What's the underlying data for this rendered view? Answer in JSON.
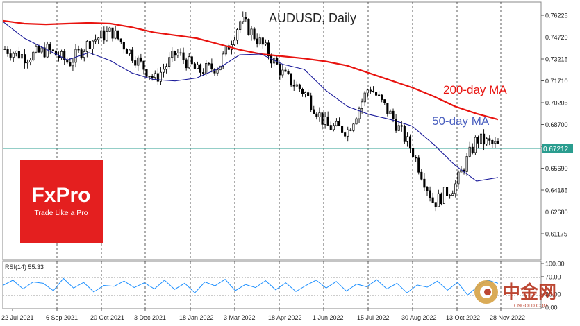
{
  "chart_data": [
    {
      "type": "candlestick",
      "title": "AUDUSD, Daily",
      "y_axis_side": "right",
      "ylim": [
        0.6045,
        0.631
      ],
      "y_ticks": [
        "0.76225",
        "0.74720",
        "0.73215",
        "0.71710",
        "0.70205",
        "0.68700",
        "0.67195",
        "0.65690",
        "0.64185",
        "0.62680",
        "0.61175"
      ],
      "y_tick_values": [
        0.76225,
        0.7472,
        0.73215,
        0.7171,
        0.70205,
        0.687,
        0.67195,
        0.6569,
        0.64185,
        0.6268,
        0.61175
      ],
      "x_ticks": [
        "22 Jul 2021",
        "6 Sep 2021",
        "20 Oct 2021",
        "3 Dec 2021",
        "18 Jan 2022",
        "3 Mar 2022",
        "18 Apr 2022",
        "1 Jun 2022",
        "15 Jul 2022",
        "30 Aug 2022",
        "13 Oct 2022",
        "28 Nov 2022"
      ],
      "current_price": "0.67212",
      "grid": "vertical dashed",
      "series": [
        {
          "name": "200-day MA",
          "color": "#e8130f",
          "values": [
            0.7585,
            0.7565,
            0.756,
            0.7565,
            0.757,
            0.7565,
            0.754,
            0.7505,
            0.7485,
            0.7465,
            0.7425,
            0.7385,
            0.7355,
            0.734,
            0.7325,
            0.7305,
            0.7275,
            0.7225,
            0.7175,
            0.7125,
            0.7065,
            0.6995,
            0.6945,
            0.6905
          ]
        },
        {
          "name": "50-day MA",
          "color": "#1a1a9a",
          "values": [
            0.758,
            0.7465,
            0.739,
            0.7315,
            0.7365,
            0.731,
            0.7225,
            0.718,
            0.717,
            0.719,
            0.7255,
            0.735,
            0.7355,
            0.7285,
            0.725,
            0.7105,
            0.6995,
            0.694,
            0.6905,
            0.686,
            0.6735,
            0.659,
            0.648,
            0.6505
          ]
        },
        {
          "name": "AUDUSD",
          "color": "#000000",
          "values": [
            0.739,
            0.7335,
            0.7385,
            0.7295,
            0.7445,
            0.751,
            0.734,
            0.718,
            0.7365,
            0.7235,
            0.7275,
            0.759,
            0.742,
            0.721,
            0.7085,
            0.686,
            0.683,
            0.7135,
            0.6935,
            0.669,
            0.633,
            0.645,
            0.677,
            0.6721
          ]
        }
      ],
      "annotations": [
        "200-day MA",
        "50-day MA"
      ]
    },
    {
      "type": "line",
      "title": "RSI(14) 55.33",
      "ylim": [
        0,
        100
      ],
      "y_ticks": [
        "100.00",
        "70.00",
        "30.00",
        "0.00"
      ],
      "reference_lines": [
        70,
        30
      ],
      "series": [
        {
          "name": "RSI(14)",
          "color": "#1e90ff",
          "values": [
            50,
            62,
            42,
            58,
            55,
            38,
            66,
            44,
            57,
            35,
            50,
            48,
            60,
            45,
            56,
            42,
            62,
            41,
            55,
            33,
            58,
            49,
            64,
            38,
            52,
            45,
            61,
            40,
            56,
            36,
            50,
            62,
            44,
            59,
            37,
            53,
            47,
            63,
            42,
            55,
            33,
            51,
            46,
            60,
            39,
            57,
            28,
            48,
            62,
            55
          ]
        }
      ]
    }
  ],
  "watermark": {
    "brand": "FxPro",
    "tagline": "Trade Like a Pro",
    "brand_color": "#e41f1f"
  },
  "source_logo": {
    "text": "中金网",
    "subtext": "CNGOLD.COM",
    "color": "#b5321c"
  }
}
